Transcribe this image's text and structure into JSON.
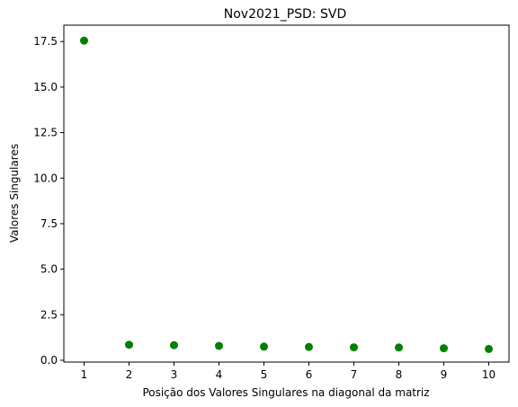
{
  "chart_data": {
    "type": "scatter",
    "title": "Nov2021_PSD: SVD",
    "xlabel": "Posição dos Valores Singulares na diagonal da matriz",
    "ylabel": "Valores Singulares",
    "x": [
      1,
      2,
      3,
      4,
      5,
      6,
      7,
      8,
      9,
      10
    ],
    "y": [
      17.55,
      0.85,
      0.83,
      0.79,
      0.75,
      0.73,
      0.71,
      0.7,
      0.66,
      0.62
    ],
    "xlim": [
      0.55,
      10.45
    ],
    "ylim": [
      -0.1,
      18.4
    ],
    "xticks": [
      "1",
      "2",
      "3",
      "4",
      "5",
      "6",
      "7",
      "8",
      "9",
      "10"
    ],
    "yticks": [
      "0.0",
      "2.5",
      "5.0",
      "7.5",
      "10.0",
      "12.5",
      "15.0",
      "17.5"
    ],
    "grid": false,
    "marker_color": "#008000"
  }
}
